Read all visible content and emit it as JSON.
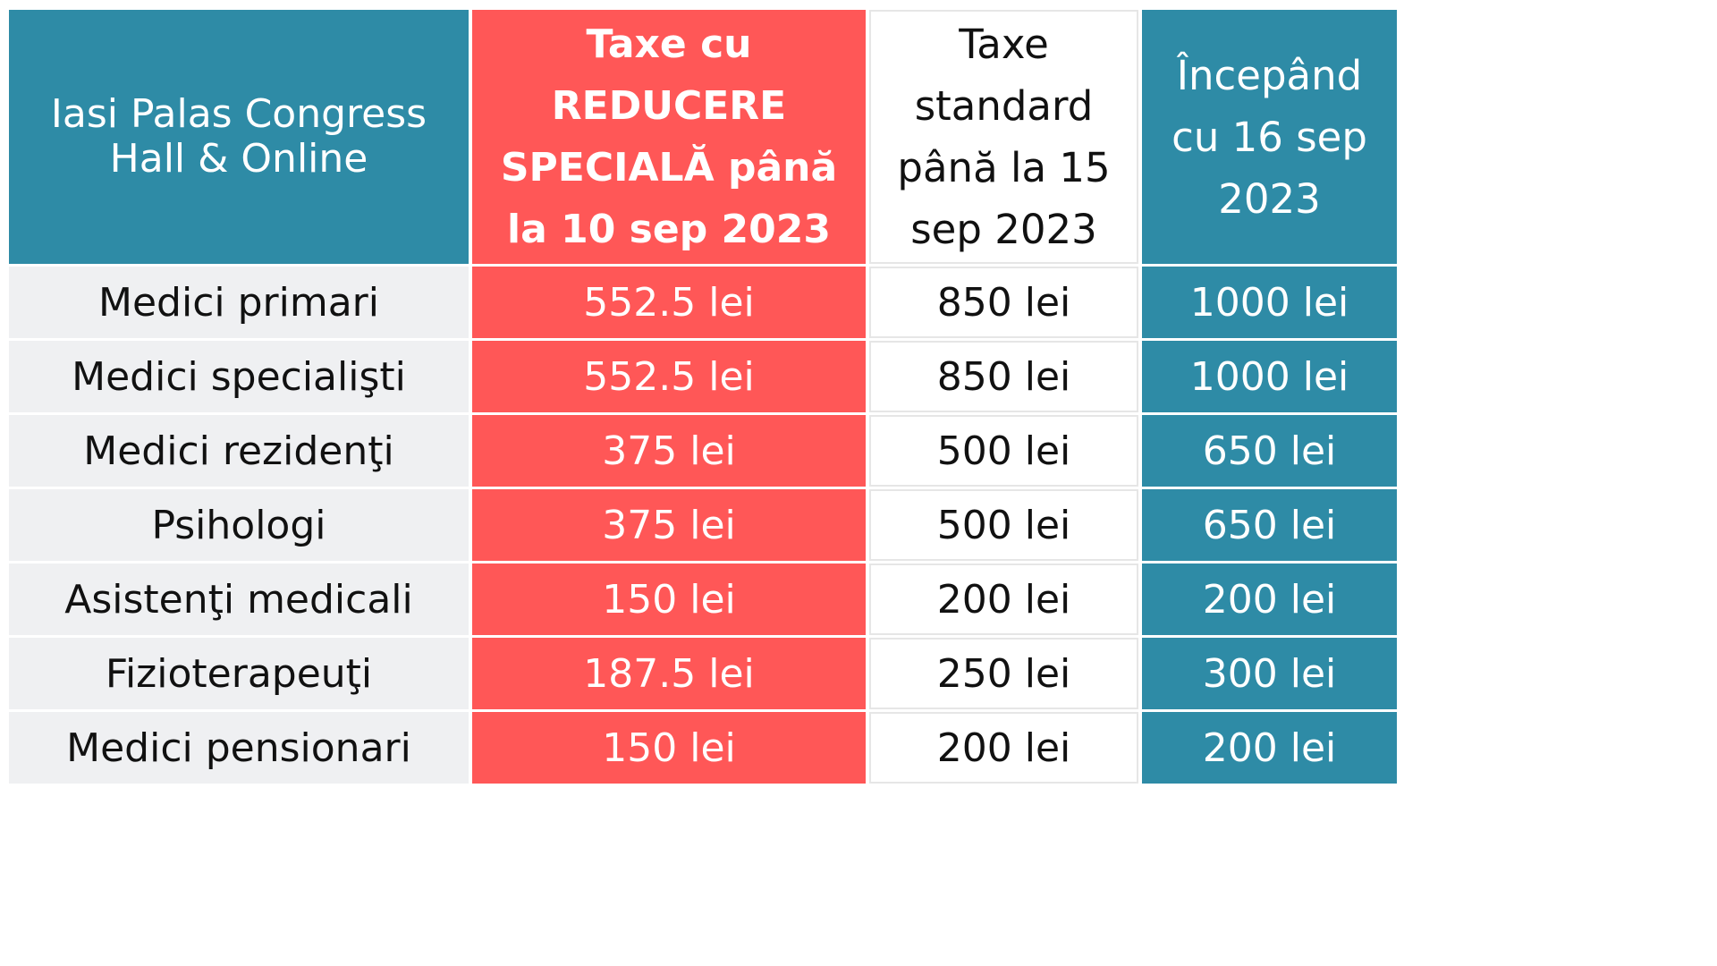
{
  "colors": {
    "teal": "#2E8BA6",
    "red": "#FF5757",
    "grey": "#EFF0F2",
    "white": "#FFFFFF"
  },
  "header": {
    "venue": [
      "Iasi Palas Congress",
      "Hall & Online"
    ],
    "special": [
      "Taxe cu",
      "REDUCERE",
      "SPECIALĂ până",
      "la 10 sep 2023"
    ],
    "standard": [
      "Taxe",
      "standard",
      "până la 15",
      "sep 2023"
    ],
    "late": [
      "Începând",
      "cu 16 sep",
      "2023"
    ]
  },
  "rows": [
    {
      "category": "Medici primari",
      "special": "552.5 lei",
      "standard": "850 lei",
      "late": "1000 lei"
    },
    {
      "category": "Medici specialişti",
      "special": "552.5 lei",
      "standard": "850 lei",
      "late": "1000 lei"
    },
    {
      "category": "Medici rezidenţi",
      "special": "375 lei",
      "standard": "500 lei",
      "late": "650 lei"
    },
    {
      "category": "Psihologi",
      "special": "375 lei",
      "standard": "500 lei",
      "late": "650 lei"
    },
    {
      "category": "Asistenţi medicali",
      "special": "150 lei",
      "standard": "200 lei",
      "late": "200 lei"
    },
    {
      "category": "Fizioterapeuţi",
      "special": "187.5 lei",
      "standard": "250 lei",
      "late": "300 lei"
    },
    {
      "category": "Medici pensionari",
      "special": "150 lei",
      "standard": "200 lei",
      "late": "200 lei"
    }
  ]
}
